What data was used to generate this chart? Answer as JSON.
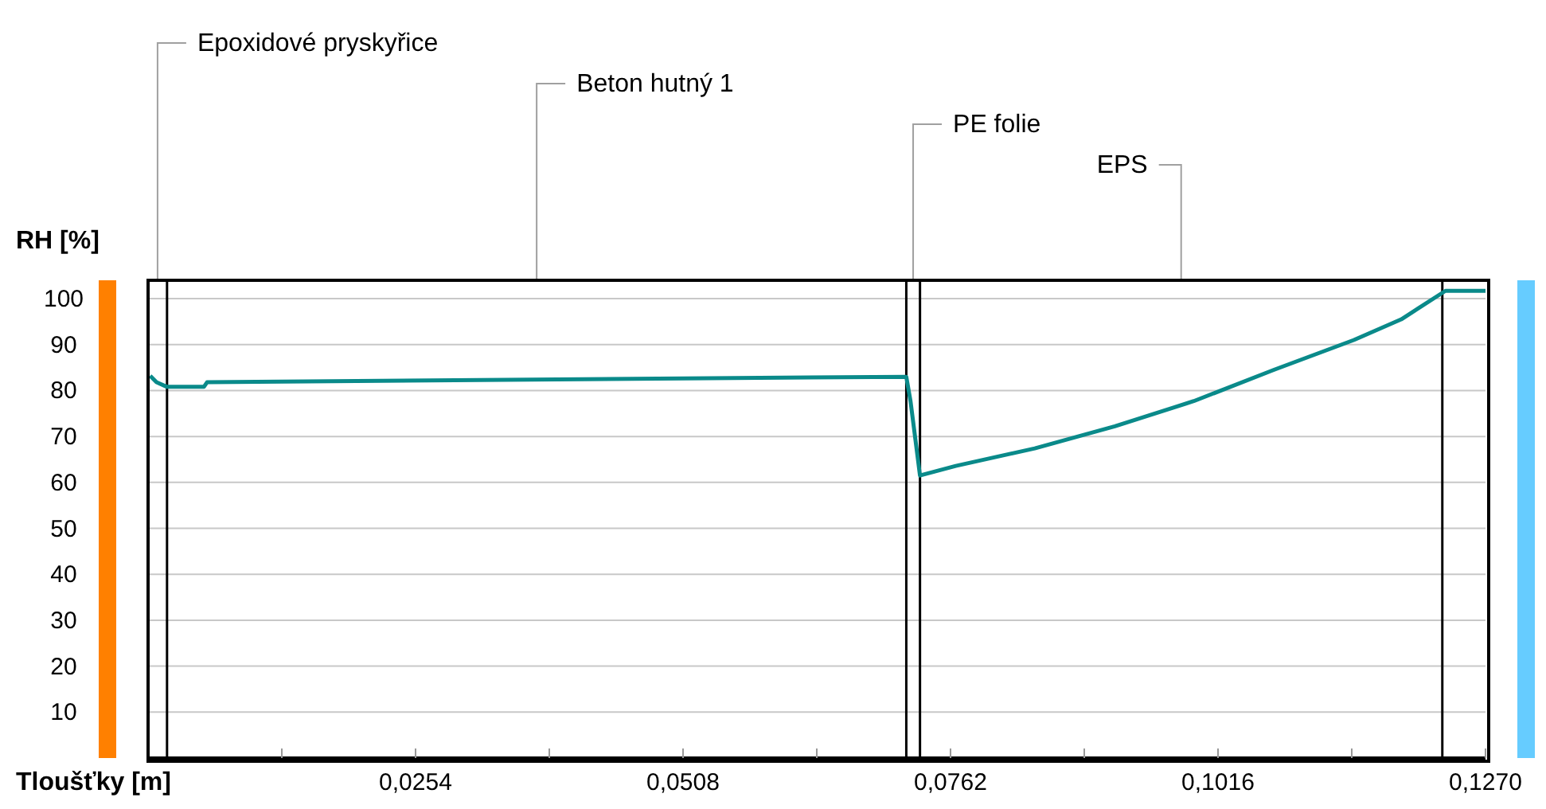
{
  "chart_data": {
    "type": "line",
    "xlabel": "Tloušťky [m]",
    "ylabel": "RH [%]",
    "x": [
      0.0002,
      0.0008,
      0.0018,
      0.0053,
      0.0056,
      0.072,
      0.0724,
      0.0729,
      0.0733,
      0.0767,
      0.0842,
      0.0918,
      0.0993,
      0.1069,
      0.1145,
      0.119,
      0.1232,
      0.127
    ],
    "series": [
      {
        "color": "#0a8a8a",
        "values": [
          83.2,
          81.8,
          80.8,
          80.8,
          81.8,
          83.0,
          77.7,
          68.7,
          61.5,
          63.6,
          67.4,
          72.2,
          77.7,
          84.5,
          91,
          95.5,
          101.7,
          101.7
        ]
      }
    ],
    "xlim": [
      0,
      0.127
    ],
    "xticks": [
      {
        "value": 0.0127,
        "label": null
      },
      {
        "value": 0.0254,
        "label": "0,0254"
      },
      {
        "value": 0.0381,
        "label": null
      },
      {
        "value": 0.0508,
        "label": "0,0508"
      },
      {
        "value": 0.0635,
        "label": null
      },
      {
        "value": 0.0762,
        "label": "0,0762"
      },
      {
        "value": 0.0889,
        "label": null
      },
      {
        "value": 0.1016,
        "label": "0,1016"
      },
      {
        "value": 0.1143,
        "label": null
      },
      {
        "value": 0.127,
        "label": "0,1270"
      }
    ],
    "ylim": [
      0,
      104
    ],
    "yticks": [
      10,
      20,
      30,
      40,
      50,
      60,
      70,
      80,
      90,
      100
    ],
    "grid": "y",
    "marker": "none",
    "line_style": "solid",
    "ref_lines": [
      {
        "axis": "x",
        "value": 0.0018,
        "color": "#000000"
      },
      {
        "axis": "x",
        "value": 0.072,
        "color": "#000000"
      },
      {
        "axis": "x",
        "value": 0.0733,
        "color": "#000000"
      },
      {
        "axis": "x",
        "value": 0.1229,
        "color": "#000000"
      }
    ],
    "annotations": [
      "Epoxidové pryskyřice",
      "Beton hutný 1",
      "PE folie",
      "EPS"
    ]
  }
}
